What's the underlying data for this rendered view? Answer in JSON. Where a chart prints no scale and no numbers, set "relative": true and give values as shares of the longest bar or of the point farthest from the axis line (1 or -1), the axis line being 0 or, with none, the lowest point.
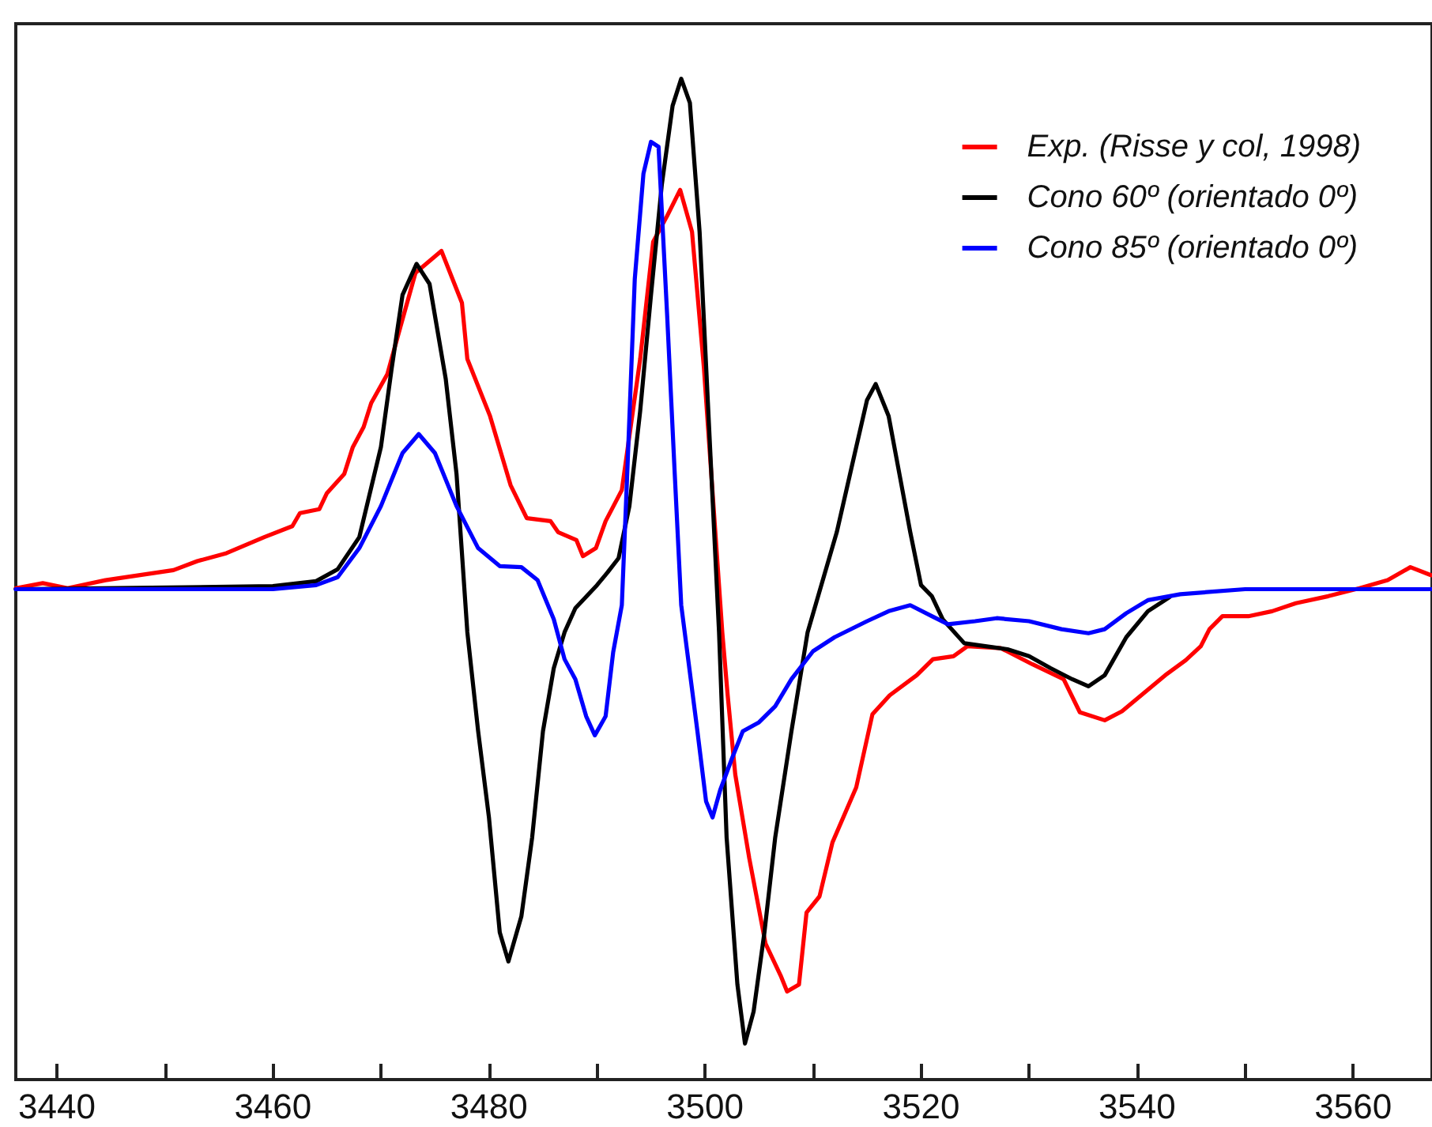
{
  "chart_data": {
    "type": "line",
    "relative": true,
    "tick_labels": "x",
    "grid": false,
    "legend": "top right",
    "marker": "none",
    "line_style": "solid",
    "xlim": [
      3436.2,
      3567.3
    ],
    "xticks": [
      3440,
      {
        "value": 3450,
        "label": null
      },
      3460,
      {
        "value": 3470,
        "label": null
      },
      3480,
      {
        "value": 3490,
        "label": null
      },
      3500,
      {
        "value": 3510,
        "label": null
      },
      3520,
      {
        "value": 3530,
        "label": null
      },
      3540,
      {
        "value": 3550,
        "label": null
      },
      3560
    ],
    "series": [
      {
        "name": "Exp. (Risse y col, 1998)",
        "color": "#ff0000",
        "x": [
          3436.2,
          3438.7,
          3441,
          3444.5,
          3450.8,
          3453,
          3455.7,
          3459.2,
          3461.8,
          3462.5,
          3464.3,
          3465,
          3466.6,
          3467.4,
          3468.4,
          3469.1,
          3470.6,
          3471.8,
          3473.2,
          3475.6,
          3477.5,
          3478,
          3480.1,
          3482,
          3483.5,
          3485.7,
          3486.4,
          3488.1,
          3488.7,
          3489.9,
          3490.8,
          3492.3,
          3494,
          3495.2,
          3496.5,
          3497.7,
          3498.8,
          3499.9,
          3501.6,
          3502.1,
          3502.8,
          3504.1,
          3505.6,
          3507,
          3507.6,
          3508.7,
          3509.4,
          3510.6,
          3511.8,
          3514,
          3515.5,
          3517.1,
          3519.6,
          3521.1,
          3523,
          3524.3,
          3527.4,
          3530.3,
          3533.2,
          3534.7,
          3537,
          3538.6,
          3542.6,
          3544.5,
          3545.9,
          3546.7,
          3547.9,
          3550.3,
          3552.5,
          3554.7,
          3557.7,
          3560.6,
          3563.2,
          3565.3,
          3567.2
        ],
        "values": [
          0.491,
          0.496,
          0.491,
          0.499,
          0.509,
          0.518,
          0.526,
          0.542,
          0.553,
          0.566,
          0.57,
          0.586,
          0.605,
          0.632,
          0.652,
          0.676,
          0.705,
          0.752,
          0.806,
          0.828,
          0.776,
          0.72,
          0.663,
          0.594,
          0.561,
          0.558,
          0.547,
          0.539,
          0.523,
          0.531,
          0.558,
          0.589,
          0.72,
          0.837,
          0.863,
          0.889,
          0.847,
          0.711,
          0.447,
          0.384,
          0.305,
          0.221,
          0.136,
          0.104,
          0.088,
          0.095,
          0.167,
          0.183,
          0.237,
          0.292,
          0.365,
          0.384,
          0.404,
          0.42,
          0.423,
          0.433,
          0.431,
          0.415,
          0.4,
          0.367,
          0.359,
          0.368,
          0.404,
          0.419,
          0.433,
          0.45,
          0.463,
          0.463,
          0.468,
          0.476,
          0.483,
          0.491,
          0.499,
          0.512,
          0.504
        ]
      },
      {
        "name": "Cono 60º (orientado 0º)",
        "color": "#000000",
        "x": [
          3436.2,
          3460,
          3464,
          3466,
          3468,
          3470,
          3471,
          3472,
          3473.3,
          3474.5,
          3476,
          3477,
          3478,
          3479,
          3480,
          3481,
          3481.8,
          3483,
          3484,
          3485,
          3486,
          3487,
          3488,
          3490,
          3491,
          3492,
          3493,
          3494,
          3495,
          3496,
          3497,
          3497.8,
          3498.6,
          3499.5,
          3501.3,
          3502,
          3503,
          3503.7,
          3504.5,
          3505.5,
          3506.5,
          3508,
          3509.5,
          3512.2,
          3514,
          3515,
          3515.8,
          3517,
          3518,
          3519,
          3520,
          3521,
          3522,
          3524,
          3528,
          3530,
          3532,
          3534,
          3535.5,
          3537,
          3539,
          3541,
          3543
        ],
        "values": [
          0.49,
          0.493,
          0.498,
          0.51,
          0.542,
          0.632,
          0.711,
          0.784,
          0.815,
          0.795,
          0.7,
          0.605,
          0.447,
          0.348,
          0.262,
          0.147,
          0.118,
          0.163,
          0.242,
          0.348,
          0.411,
          0.447,
          0.471,
          0.494,
          0.507,
          0.521,
          0.573,
          0.668,
          0.784,
          0.894,
          0.973,
          1,
          0.976,
          0.847,
          0.447,
          0.242,
          0.095,
          0.036,
          0.068,
          0.147,
          0.242,
          0.348,
          0.447,
          0.547,
          0.632,
          0.679,
          0.695,
          0.663,
          0.605,
          0.547,
          0.494,
          0.483,
          0.46,
          0.436,
          0.43,
          0.423,
          0.411,
          0.4,
          0.393,
          0.404,
          0.442,
          0.468,
          0.482
        ]
      },
      {
        "name": "Cono 85º (orientado 0º)",
        "color": "#0000ff",
        "x": [
          3436.2,
          3460,
          3464,
          3466,
          3468,
          3470,
          3472,
          3473.5,
          3475,
          3477,
          3479,
          3481,
          3483,
          3484.5,
          3486,
          3487,
          3488,
          3489,
          3489.8,
          3490.8,
          3491.5,
          3492.3,
          3492.8,
          3493.5,
          3494.3,
          3495,
          3495.7,
          3496.5,
          3497.2,
          3497.8,
          3499.3,
          3500.1,
          3500.7,
          3501.4,
          3502.5,
          3503.5,
          3505,
          3506.5,
          3508,
          3510,
          3512,
          3515,
          3517,
          3519,
          3521,
          3522.5,
          3525,
          3527,
          3530,
          3533,
          3535.5,
          3537,
          3539,
          3541,
          3544,
          3550,
          3567.3
        ],
        "values": [
          0.49,
          0.49,
          0.494,
          0.502,
          0.531,
          0.573,
          0.626,
          0.645,
          0.626,
          0.573,
          0.531,
          0.513,
          0.512,
          0.499,
          0.46,
          0.42,
          0.4,
          0.363,
          0.344,
          0.363,
          0.427,
          0.474,
          0.605,
          0.8,
          0.905,
          0.937,
          0.932,
          0.763,
          0.605,
          0.474,
          0.348,
          0.278,
          0.262,
          0.289,
          0.321,
          0.348,
          0.357,
          0.373,
          0.4,
          0.428,
          0.442,
          0.458,
          0.468,
          0.474,
          0.463,
          0.455,
          0.458,
          0.461,
          0.458,
          0.45,
          0.446,
          0.45,
          0.466,
          0.479,
          0.485,
          0.49,
          0.49
        ]
      }
    ]
  }
}
